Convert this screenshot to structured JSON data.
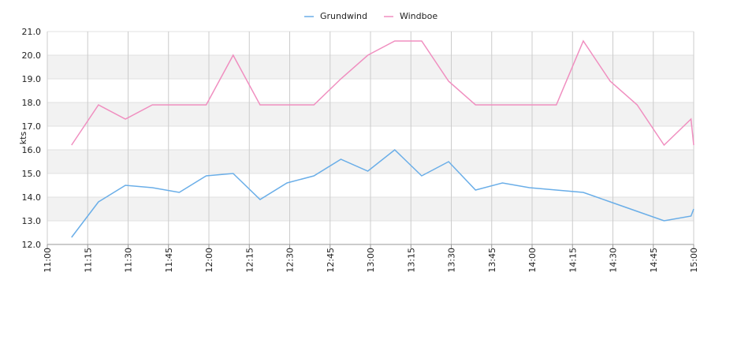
{
  "chart_data": {
    "type": "line",
    "ylabel": "kts",
    "x": [
      "11:09",
      "11:19",
      "11:29",
      "11:39",
      "11:49",
      "11:59",
      "12:09",
      "12:19",
      "12:29",
      "12:39",
      "12:49",
      "12:59",
      "13:09",
      "13:19",
      "13:29",
      "13:39",
      "13:49",
      "13:59",
      "14:09",
      "14:19",
      "14:29",
      "14:39",
      "14:49",
      "14:59",
      "15:00"
    ],
    "series": [
      {
        "name": "Grundwind",
        "color": "#6aaee8",
        "values": [
          12.3,
          13.8,
          14.5,
          14.4,
          14.2,
          14.9,
          15.0,
          13.9,
          14.6,
          14.9,
          15.6,
          15.1,
          16.0,
          14.9,
          15.5,
          14.3,
          14.6,
          14.4,
          14.3,
          14.2,
          13.8,
          13.4,
          13.0,
          13.2,
          13.5
        ]
      },
      {
        "name": "Windboe",
        "color": "#f08fc0",
        "values": [
          16.2,
          17.9,
          17.3,
          17.9,
          17.9,
          17.9,
          20.0,
          17.9,
          17.9,
          17.9,
          19.0,
          20.0,
          20.6,
          20.6,
          18.9,
          17.9,
          17.9,
          17.9,
          17.9,
          20.6,
          18.9,
          17.9,
          16.2,
          17.3,
          16.2
        ]
      }
    ],
    "xlim": [
      "11:00",
      "15:00"
    ],
    "xticks": [
      "11:00",
      "11:15",
      "11:30",
      "11:45",
      "12:00",
      "12:15",
      "12:30",
      "12:45",
      "13:00",
      "13:15",
      "13:30",
      "13:45",
      "14:00",
      "14:15",
      "14:30",
      "14:45",
      "15:00"
    ],
    "ylim": [
      12,
      21
    ],
    "yticks": [
      {
        "value": 12,
        "label": "12.0"
      },
      {
        "value": 13,
        "label": "13.0"
      },
      {
        "value": 14,
        "label": "14.0"
      },
      {
        "value": 15,
        "label": "15.0"
      },
      {
        "value": 16,
        "label": "16.0"
      },
      {
        "value": 17,
        "label": "17.0"
      },
      {
        "value": 18,
        "label": "18.0"
      },
      {
        "value": 19,
        "label": "19.0"
      },
      {
        "value": 20,
        "label": "20.0"
      },
      {
        "value": 21,
        "label": "21.0"
      }
    ],
    "grid": true,
    "legend": "top"
  }
}
